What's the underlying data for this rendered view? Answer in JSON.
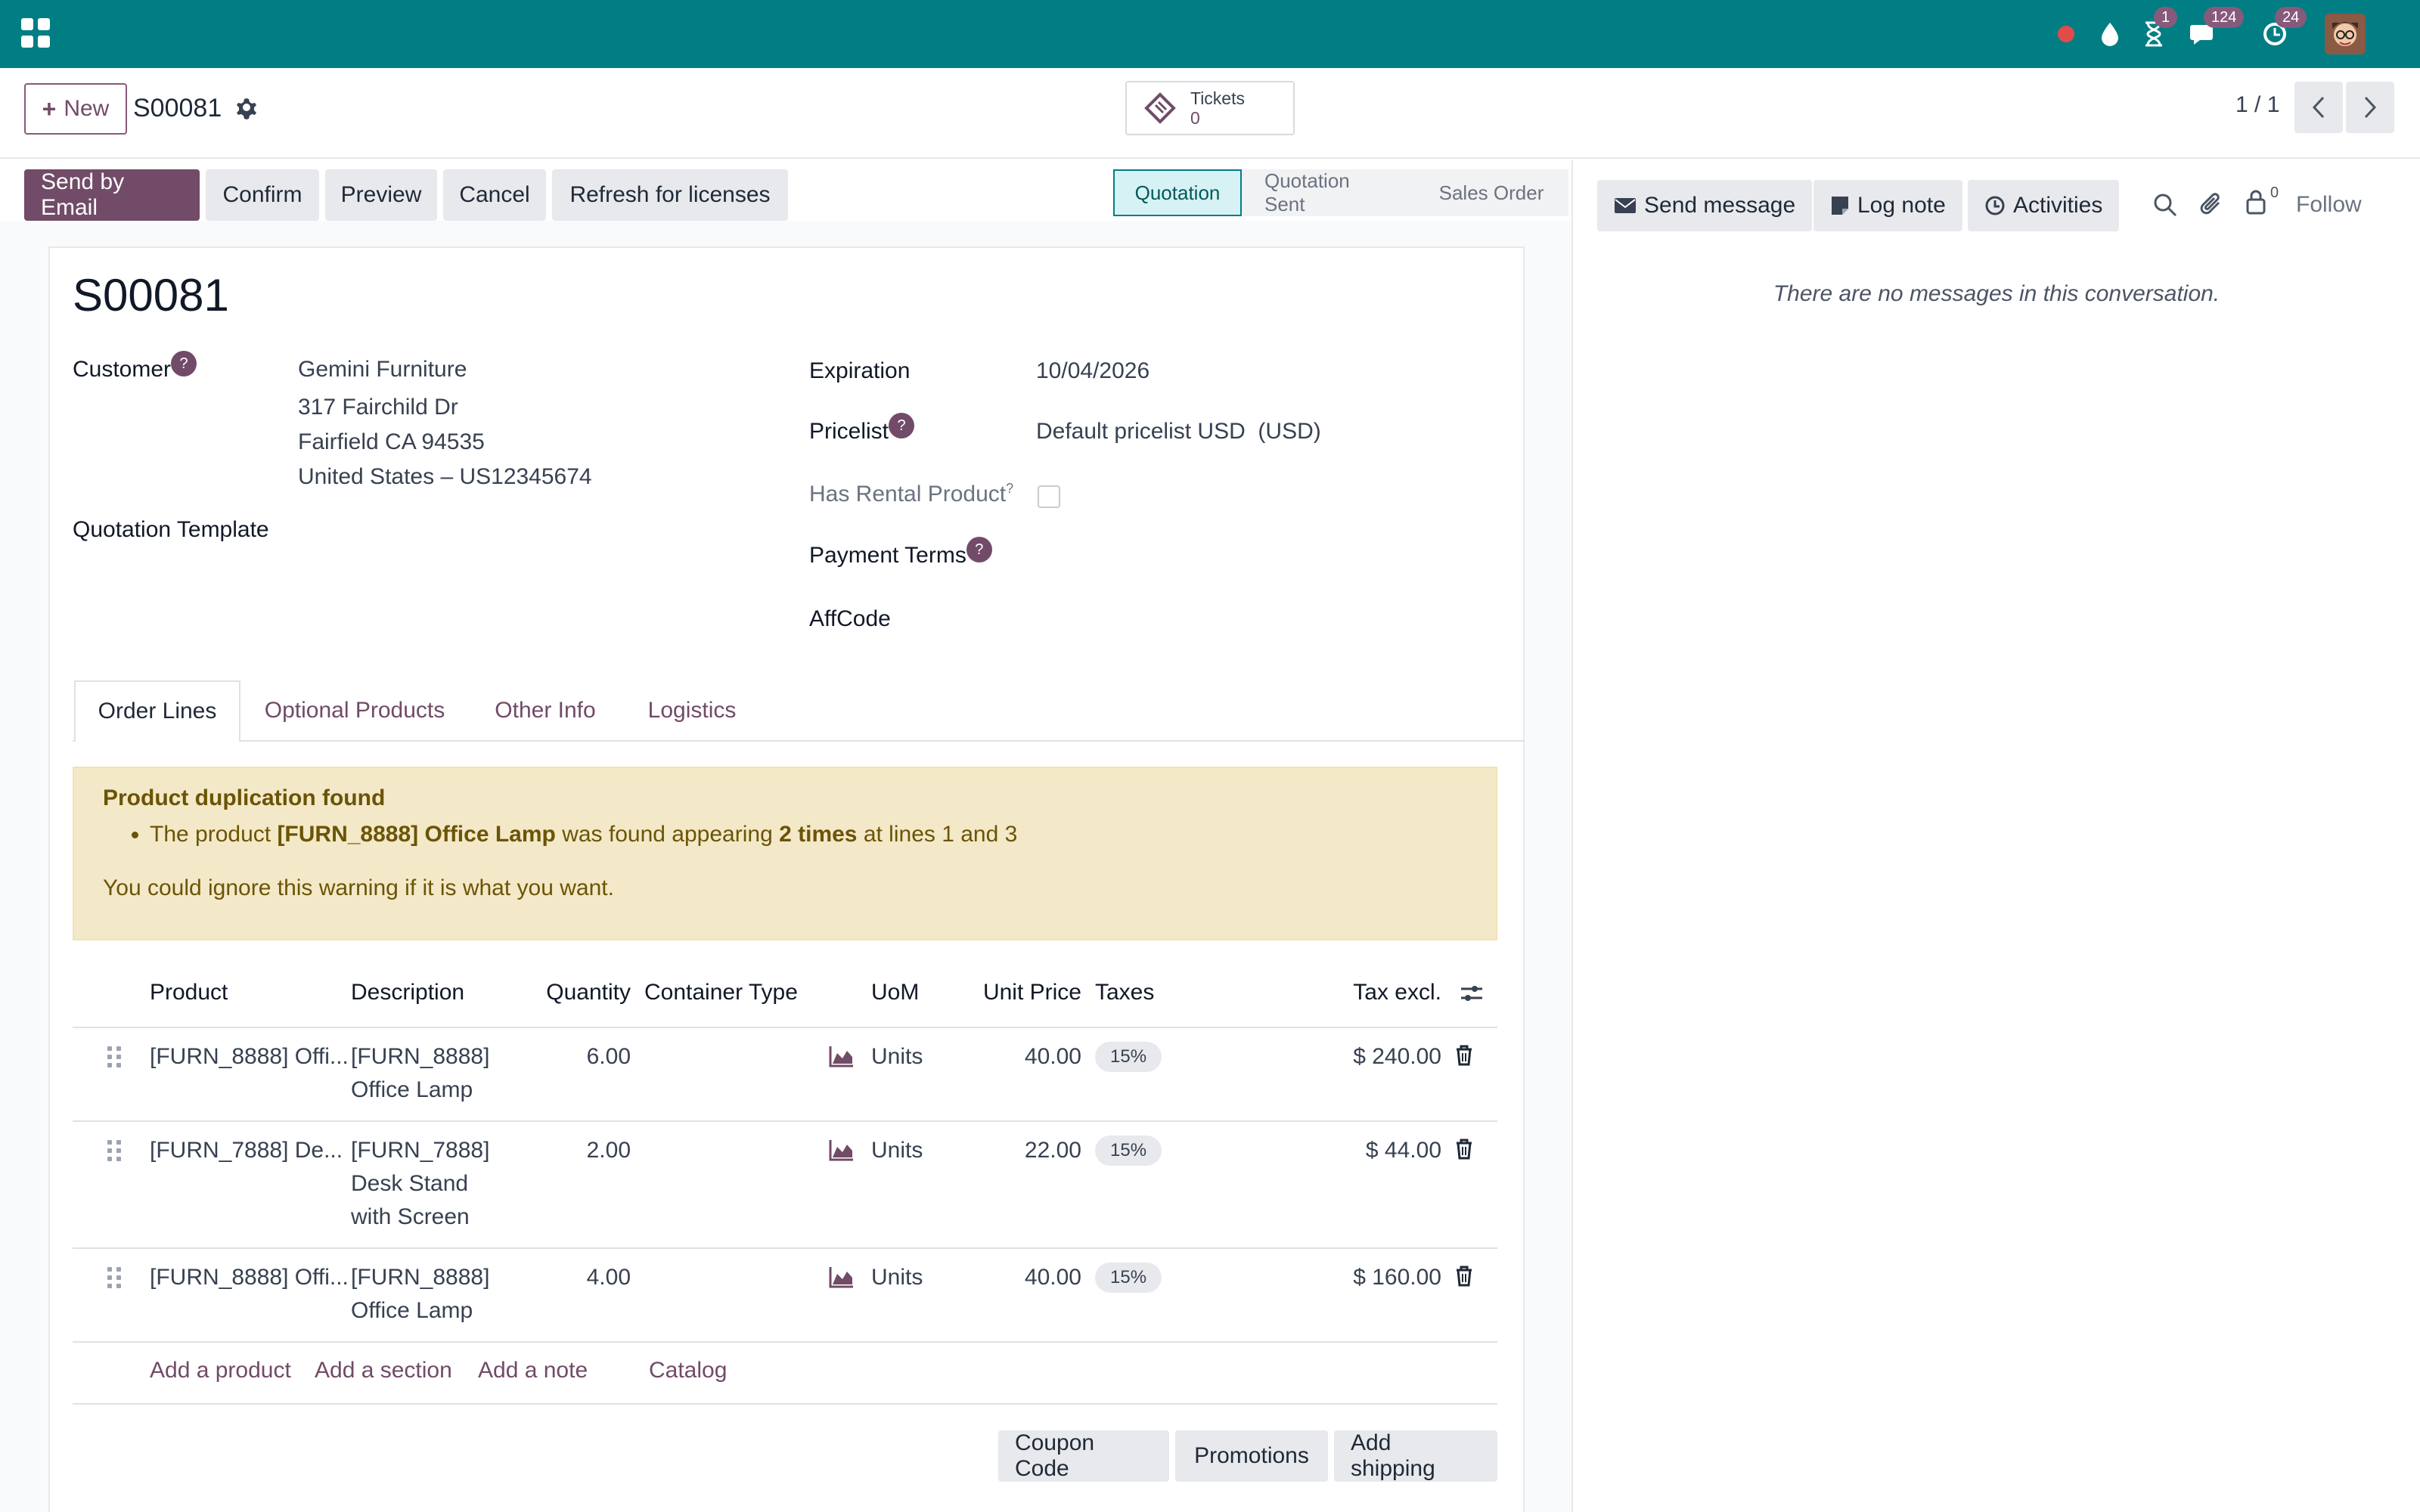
{
  "navbar": {
    "badges": {
      "activity": "1",
      "messages": "124",
      "updates": "24"
    }
  },
  "control": {
    "new_label": "New",
    "record_name": "S00081",
    "tickets_label": "Tickets",
    "tickets_count": "0",
    "pager": "1 / 1"
  },
  "actions": {
    "send_email": "Send by Email",
    "confirm": "Confirm",
    "preview": "Preview",
    "cancel": "Cancel",
    "refresh": "Refresh for licenses"
  },
  "status": {
    "stages": [
      "Quotation",
      "Quotation Sent",
      "Sales Order"
    ],
    "active": "Quotation"
  },
  "form": {
    "title": "S00081",
    "customer_label": "Customer",
    "customer_name": "Gemini Furniture",
    "address_line1": "317 Fairchild Dr",
    "address_line2": "Fairfield CA 94535",
    "address_line3": "United States – US12345674",
    "template_label": "Quotation Template",
    "expiration_label": "Expiration",
    "expiration_value": "10/04/2026",
    "pricelist_label": "Pricelist",
    "pricelist_value": "Default pricelist USD  (USD)",
    "rental_label": "Has Rental Product",
    "rental_sup": "?",
    "payment_label": "Payment Terms",
    "affcode_label": "AffCode",
    "help_mark": "?"
  },
  "tabs": [
    "Order Lines",
    "Optional Products",
    "Other Info",
    "Logistics"
  ],
  "alert": {
    "title": "Product duplication found",
    "pre": "The product ",
    "product": "[FURN_8888] Office Lamp",
    "mid": " was found appearing ",
    "times": "2 times",
    "post": " at lines 1 and 3",
    "note": "You could ignore this warning if it is what you want."
  },
  "table": {
    "headers": {
      "product": "Product",
      "description": "Description",
      "quantity": "Quantity",
      "container": "Container Type",
      "uom": "UoM",
      "unit_price": "Unit Price",
      "taxes": "Taxes",
      "subtotal": "Tax excl."
    },
    "rows": [
      {
        "product": "[FURN_8888] Offi...",
        "desc1": "[FURN_8888]",
        "desc2": "Office Lamp",
        "desc3": "",
        "qty": "6.00",
        "uom": "Units",
        "price": "40.00",
        "tax": "15%",
        "subtotal": "$ 240.00"
      },
      {
        "product": "[FURN_7888] De...",
        "desc1": "[FURN_7888]",
        "desc2": "Desk Stand",
        "desc3": "with Screen",
        "qty": "2.00",
        "uom": "Units",
        "price": "22.00",
        "tax": "15%",
        "subtotal": "$ 44.00"
      },
      {
        "product": "[FURN_8888] Offi...",
        "desc1": "[FURN_8888]",
        "desc2": "Office Lamp",
        "desc3": "",
        "qty": "4.00",
        "uom": "Units",
        "price": "40.00",
        "tax": "15%",
        "subtotal": "$ 160.00"
      }
    ],
    "add_product": "Add a product",
    "add_section": "Add a section",
    "add_note": "Add a note",
    "catalog": "Catalog"
  },
  "bottom_buttons": {
    "coupon": "Coupon Code",
    "promotions": "Promotions",
    "shipping": "Add shipping"
  },
  "chatter": {
    "send_message": "Send message",
    "log_note": "Log note",
    "activities": "Activities",
    "follower_count": "0",
    "follow": "Follow",
    "empty": "There are no messages in this conversation."
  },
  "colors": {
    "navbar": "#017e84",
    "primary": "#714b67"
  }
}
